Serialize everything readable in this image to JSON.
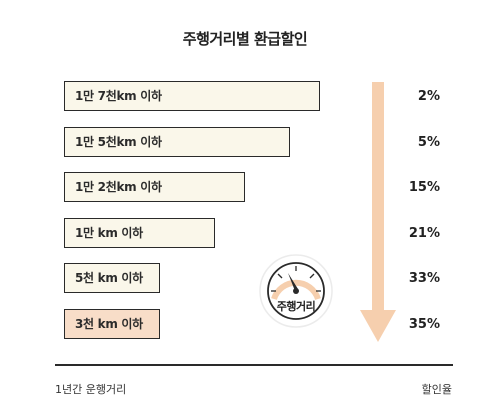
{
  "chart_data": {
    "type": "bar",
    "orientation": "horizontal",
    "title": "주행거리별 환급할인",
    "categories": [
      "1만 7천km 이하",
      "1만 5천km 이하",
      "1만 2천km 이하",
      "1만 km 이하",
      "5천 km 이하",
      "3천 km 이하"
    ],
    "values": [
      17000,
      15000,
      12000,
      10000,
      5000,
      3000
    ],
    "discount_labels": [
      "2%",
      "5%",
      "15%",
      "21%",
      "33%",
      "35%"
    ],
    "discounts": [
      2,
      5,
      15,
      21,
      33,
      35
    ],
    "xlabel": "1년간 운행거리",
    "ylabel": "할인율",
    "highlight_category": "3천 km 이하",
    "gauge_label": "주행거리",
    "grid": false,
    "colors": {
      "bar_fill": "#faf7ea",
      "highlight_fill": "#f8ddc8",
      "arrow": "#f6cfae",
      "outline": "#2a2a2a"
    }
  }
}
